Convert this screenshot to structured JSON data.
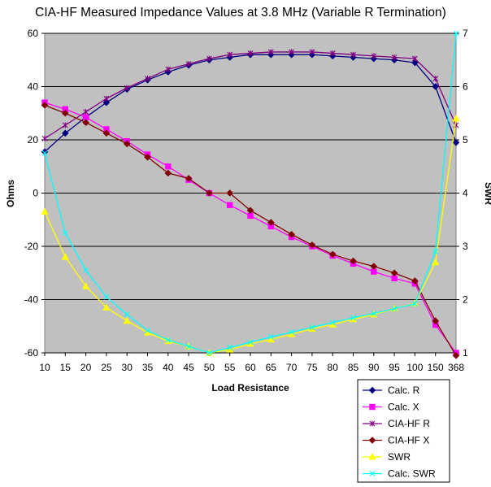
{
  "chart_data": {
    "type": "line",
    "title": "CIA-HF Measured Impedance Values at 3.8 MHz (Variable R Termination)",
    "xlabel": "Load Resistance",
    "ylabel": "Ohms",
    "y2label": "SWR",
    "categories": [
      "10",
      "15",
      "20",
      "25",
      "30",
      "35",
      "40",
      "45",
      "50",
      "55",
      "60",
      "65",
      "70",
      "75",
      "80",
      "85",
      "90",
      "95",
      "100",
      "150",
      "368"
    ],
    "ylim": [
      -60,
      60
    ],
    "yticks": [
      "60",
      "40",
      "20",
      "0",
      "-20",
      "-40",
      "-60"
    ],
    "y2lim": [
      1,
      7
    ],
    "y2ticks": [
      "7",
      "6",
      "5",
      "4",
      "3",
      "2",
      "1"
    ],
    "grid": true,
    "legend_position": "bottom-right",
    "series": [
      {
        "name": "Calc. R",
        "axis": "left",
        "color": "#000080",
        "marker": "diamond",
        "values": [
          15.5,
          22.5,
          28.5,
          34,
          39,
          42.5,
          45.5,
          48,
          50,
          51,
          52,
          52,
          52,
          52,
          51.5,
          51,
          50.5,
          50,
          49,
          40,
          19
        ]
      },
      {
        "name": "Calc. X",
        "axis": "left",
        "color": "#ff00ff",
        "marker": "square",
        "values": [
          34,
          31.5,
          28.5,
          24,
          19.5,
          14.5,
          10,
          5,
          0,
          -4.5,
          -8.5,
          -12.5,
          -16.5,
          -20,
          -23.5,
          -26.5,
          -29.5,
          -32,
          -34,
          -49.5,
          -60
        ]
      },
      {
        "name": "CIA-HF  R",
        "axis": "left",
        "color": "#800080",
        "marker": "star",
        "values": [
          20.5,
          25.5,
          30.5,
          35.5,
          39.5,
          43,
          46.5,
          48.5,
          50.5,
          52,
          52.5,
          53,
          53,
          53,
          52.5,
          52,
          51.5,
          51,
          50.5,
          43,
          25.5
        ]
      },
      {
        "name": "CIA-HF X",
        "axis": "left",
        "color": "#800000",
        "marker": "diamond",
        "values": [
          33,
          30,
          26.5,
          22.5,
          18.5,
          13.5,
          7.5,
          5.5,
          0,
          0,
          -6.5,
          -11,
          -15.5,
          -19.5,
          -23,
          -25.5,
          -27.5,
          -30,
          -33,
          -48,
          -61
        ]
      },
      {
        "name": "SWR",
        "axis": "right",
        "color": "#ffff00",
        "marker": "triangle",
        "values": [
          3.65,
          2.8,
          2.25,
          1.85,
          1.6,
          1.38,
          1.22,
          1.12,
          1.0,
          1.06,
          1.17,
          1.25,
          1.35,
          1.45,
          1.53,
          1.63,
          1.72,
          1.83,
          1.93,
          2.7,
          5.4
        ]
      },
      {
        "name": "Calc. SWR",
        "axis": "right",
        "color": "#00ffff",
        "marker": "x",
        "values": [
          4.75,
          3.25,
          2.55,
          2.05,
          1.72,
          1.42,
          1.24,
          1.12,
          1.0,
          1.1,
          1.2,
          1.3,
          1.39,
          1.48,
          1.57,
          1.66,
          1.74,
          1.83,
          1.92,
          2.9,
          7.0
        ]
      }
    ]
  }
}
